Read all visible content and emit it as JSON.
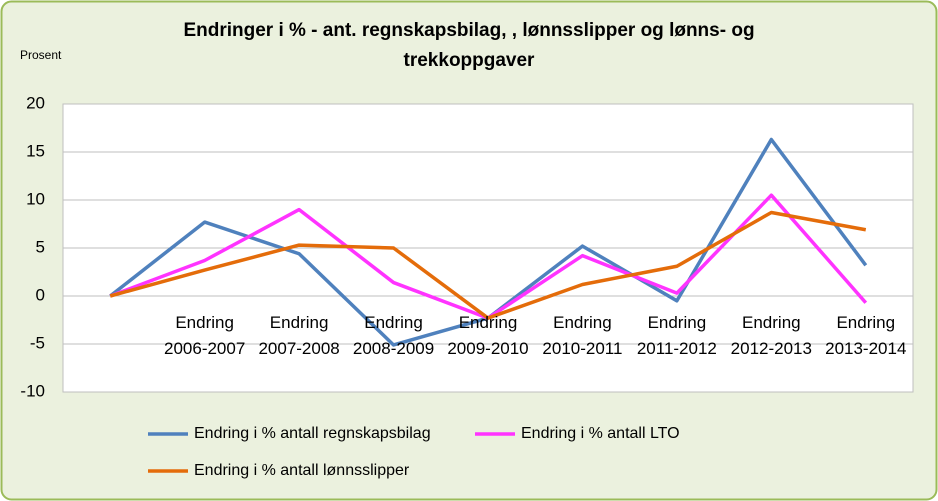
{
  "chart_data": {
    "type": "line",
    "title": "Endringer i % - ant. regnskapsbilag, , lønnsslipper og lønns- og trekkoppgaver",
    "y_axis_label": "Prosent",
    "categories": [
      null,
      "Endring 2006-2007",
      "Endring 2007-2008",
      "Endring 2008-2009",
      "Endring 2009-2010",
      "Endring 2010-2011",
      "Endring 2011-2012",
      "Endring 2012-2013",
      "Endring 2013-2014"
    ],
    "series": [
      {
        "name": "Endring i % antall regnskapsbilag",
        "color": "#4f81bd",
        "values": [
          0,
          7.7,
          4.4,
          -5.1,
          -2.3,
          5.2,
          -0.5,
          16.3,
          3.2
        ]
      },
      {
        "name": "Endring i % antall LTO",
        "color": "#ff33ff",
        "values": [
          0,
          3.7,
          9.0,
          1.4,
          -2.3,
          4.2,
          0.3,
          10.5,
          -0.7
        ]
      },
      {
        "name": "Endring i % antall lønnsslipper",
        "color": "#e46c0a",
        "values": [
          0,
          2.7,
          5.3,
          5.0,
          -2.3,
          1.2,
          3.1,
          8.7,
          6.9
        ]
      }
    ],
    "ylim": [
      -10,
      20
    ],
    "yticks": [
      -10,
      -5,
      0,
      5,
      10,
      15,
      20
    ],
    "grid": true
  }
}
